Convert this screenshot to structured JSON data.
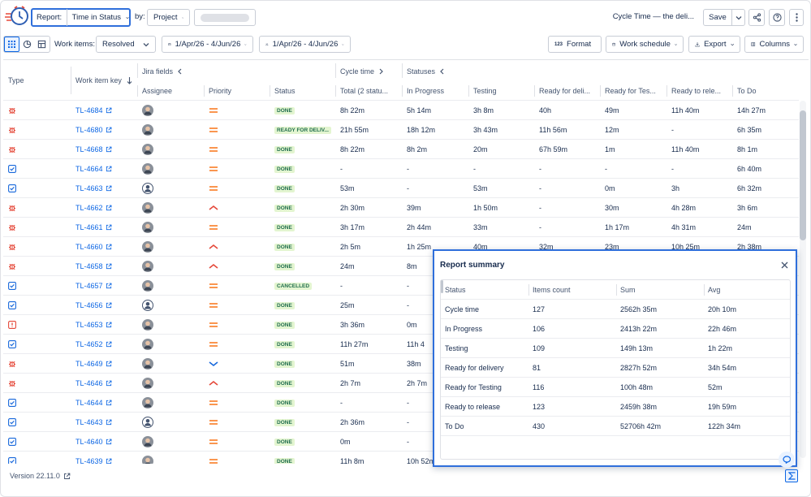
{
  "toolbar": {
    "report_label": "Report:",
    "report_value": "Time in Status",
    "by_label": "by:",
    "by_value": "Project",
    "report_name": "Cycle Time — the deli...",
    "save": "Save"
  },
  "filters": {
    "work_items_label": "Work items:",
    "work_items_value": "Resolved",
    "date_range": "1/Apr/26 - 4/Jun/26",
    "cut_range": "1/Apr/26 - 4/Jun/26",
    "format_icon": "123",
    "format": "Format",
    "work_schedule": "Work schedule",
    "export": "Export",
    "columns": "Columns"
  },
  "table": {
    "groups": [
      "Jira fields",
      "Cycle time",
      "Statuses"
    ],
    "columns": [
      "Type",
      "Work item key",
      "Assignee",
      "Priority",
      "Status",
      "Total (2 statu...",
      "In Progress",
      "Testing",
      "Ready for deli...",
      "Ready for Tes...",
      "Ready to rele...",
      "To Do"
    ],
    "rows": [
      {
        "type": "bug",
        "key": "TL-4684",
        "avatar": "photo",
        "priority": "medium",
        "status": "DONE",
        "times": [
          "8h 22m",
          "5h 14m",
          "3h 8m",
          "40h",
          "49m",
          "11h 40m",
          "14h 27m"
        ]
      },
      {
        "type": "bug",
        "key": "TL-4680",
        "avatar": "photo",
        "priority": "medium",
        "status": "READY FOR DELIV...",
        "times": [
          "21h 55m",
          "18h 12m",
          "3h 43m",
          "11h 56m",
          "12m",
          "-",
          "6h 35m"
        ]
      },
      {
        "type": "bug",
        "key": "TL-4668",
        "avatar": "photo",
        "priority": "medium",
        "status": "DONE",
        "times": [
          "8h 22m",
          "8h 2m",
          "20m",
          "67h 59m",
          "1m",
          "11h 40m",
          "8h 1m"
        ]
      },
      {
        "type": "task",
        "key": "TL-4664",
        "avatar": "photo",
        "priority": "medium",
        "status": "DONE",
        "times": [
          "-",
          "-",
          "-",
          "-",
          "-",
          "-",
          "6h 40m"
        ]
      },
      {
        "type": "task",
        "key": "TL-4663",
        "avatar": "default",
        "priority": "medium",
        "status": "DONE",
        "times": [
          "53m",
          "-",
          "53m",
          "-",
          "0m",
          "3h",
          "6h 32m"
        ]
      },
      {
        "type": "bug",
        "key": "TL-4662",
        "avatar": "photo",
        "priority": "high",
        "status": "DONE",
        "times": [
          "2h 30m",
          "39m",
          "1h 50m",
          "-",
          "30m",
          "4h 28m",
          "3h 6m"
        ]
      },
      {
        "type": "bug",
        "key": "TL-4661",
        "avatar": "photo",
        "priority": "medium",
        "status": "DONE",
        "times": [
          "3h 17m",
          "2h 44m",
          "33m",
          "-",
          "1h 17m",
          "4h 31m",
          "24m"
        ]
      },
      {
        "type": "bug",
        "key": "TL-4660",
        "avatar": "photo",
        "priority": "high",
        "status": "DONE",
        "times": [
          "2h 5m",
          "1h 25m",
          "40m",
          "32m",
          "23m",
          "10h 25m",
          "2h 38m"
        ]
      },
      {
        "type": "bug",
        "key": "TL-4658",
        "avatar": "photo",
        "priority": "high",
        "status": "DONE",
        "times": [
          "24m",
          "8m"
        ]
      },
      {
        "type": "task",
        "key": "TL-4657",
        "avatar": "photo",
        "priority": "medium",
        "status": "CANCELLED",
        "times": [
          "-",
          "-"
        ]
      },
      {
        "type": "task",
        "key": "TL-4656",
        "avatar": "default",
        "priority": "medium",
        "status": "DONE",
        "times": [
          "25m",
          "-"
        ]
      },
      {
        "type": "incident",
        "key": "TL-4653",
        "avatar": "photo",
        "priority": "medium",
        "status": "DONE",
        "times": [
          "3h 36m",
          "0m"
        ]
      },
      {
        "type": "task",
        "key": "TL-4652",
        "avatar": "photo",
        "priority": "medium",
        "status": "DONE",
        "times": [
          "11h 27m",
          "11h 4"
        ]
      },
      {
        "type": "bug",
        "key": "TL-4649",
        "avatar": "photo",
        "priority": "low",
        "status": "DONE",
        "times": [
          "51m",
          "38m"
        ]
      },
      {
        "type": "bug",
        "key": "TL-4646",
        "avatar": "photo",
        "priority": "high",
        "status": "DONE",
        "times": [
          "2h 7m",
          "2h 7m"
        ]
      },
      {
        "type": "task",
        "key": "TL-4644",
        "avatar": "photo",
        "priority": "medium",
        "status": "DONE",
        "times": [
          "-",
          "-"
        ]
      },
      {
        "type": "task",
        "key": "TL-4643",
        "avatar": "default",
        "priority": "medium",
        "status": "DONE",
        "times": [
          "2h 36m",
          "-"
        ]
      },
      {
        "type": "task",
        "key": "TL-4640",
        "avatar": "photo",
        "priority": "medium",
        "status": "DONE",
        "times": [
          "0m",
          "-"
        ]
      },
      {
        "type": "task",
        "key": "TL-4639",
        "avatar": "photo",
        "priority": "medium",
        "status": "DONE",
        "times": [
          "11h 8m",
          "10h 52m"
        ]
      }
    ]
  },
  "summary": {
    "title": "Report summary",
    "headers": [
      "Status",
      "Items count",
      "Sum",
      "Avg"
    ],
    "rows": [
      [
        "Cycle time",
        127,
        "2562h 35m",
        "20h 10m"
      ],
      [
        "In Progress",
        106,
        "2413h 22m",
        "22h 46m"
      ],
      [
        "Testing",
        109,
        "149h 13m",
        "1h 22m"
      ],
      [
        "Ready for delivery",
        81,
        "2827h 52m",
        "34h 54m"
      ],
      [
        "Ready for Testing",
        116,
        "100h 48m",
        "52m"
      ],
      [
        "Ready to release",
        123,
        "2459h 38m",
        "19h 59m"
      ],
      [
        "To Do",
        430,
        "52706h 42m",
        "122h 34m"
      ]
    ]
  },
  "footer": {
    "version": "Version 22.11.0"
  }
}
